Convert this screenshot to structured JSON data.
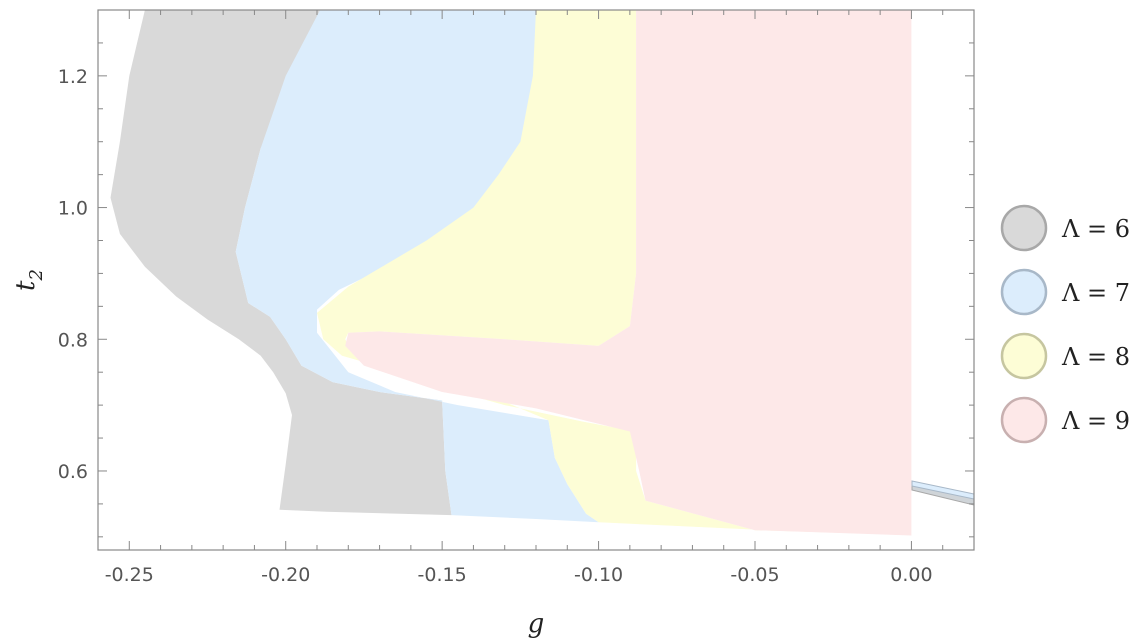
{
  "chart_data": {
    "type": "area",
    "xlabel": "g",
    "ylabel": "t",
    "ylabel_subscript": "2",
    "xlim": [
      -0.26,
      0.02
    ],
    "ylim": [
      0.48,
      1.3
    ],
    "xticks": [
      -0.25,
      -0.2,
      -0.15,
      -0.1,
      -0.05,
      0.0
    ],
    "xtick_labels": [
      "-0.25",
      "-0.20",
      "-0.15",
      "-0.10",
      "-0.05",
      "0.00"
    ],
    "yticks": [
      0.6,
      0.8,
      1.0,
      1.2
    ],
    "ytick_labels": [
      "0.6",
      "0.8",
      "1.0",
      "1.2"
    ],
    "legend_position": "right",
    "series": [
      {
        "name": "Λ = 6",
        "color": "#d9d9d9",
        "stroke": "#a8a8a8",
        "polygon": [
          [
            -0.245,
            1.3
          ],
          [
            -0.25,
            1.2
          ],
          [
            -0.253,
            1.1
          ],
          [
            -0.256,
            1.015
          ],
          [
            -0.253,
            0.96
          ],
          [
            -0.245,
            0.91
          ],
          [
            -0.235,
            0.865
          ],
          [
            -0.225,
            0.83
          ],
          [
            -0.215,
            0.8
          ],
          [
            -0.208,
            0.775
          ],
          [
            -0.204,
            0.75
          ],
          [
            -0.2,
            0.718
          ],
          [
            -0.198,
            0.685
          ],
          [
            -0.2,
            0.61
          ],
          [
            -0.202,
            0.541
          ],
          [
            -0.187,
            0.538
          ],
          [
            -0.147,
            0.533
          ],
          [
            -0.149,
            0.6
          ],
          [
            -0.15,
            0.707
          ],
          [
            -0.17,
            0.72
          ],
          [
            -0.185,
            0.735
          ],
          [
            -0.195,
            0.76
          ],
          [
            -0.2,
            0.8
          ],
          [
            -0.205,
            0.834
          ],
          [
            -0.212,
            0.855
          ],
          [
            -0.216,
            0.933
          ],
          [
            -0.213,
            1.0
          ],
          [
            -0.208,
            1.09
          ],
          [
            -0.198,
            1.17
          ],
          [
            -0.189,
            1.3
          ]
        ]
      },
      {
        "name": "Λ = 7",
        "color": "#dcedfc",
        "stroke": "#a8b8c8",
        "polygon": [
          [
            -0.189,
            1.3
          ],
          [
            -0.2,
            1.2
          ],
          [
            -0.208,
            1.09
          ],
          [
            -0.213,
            1.0
          ],
          [
            -0.216,
            0.933
          ],
          [
            -0.212,
            0.855
          ],
          [
            -0.205,
            0.834
          ],
          [
            -0.2,
            0.8
          ],
          [
            -0.195,
            0.76
          ],
          [
            -0.185,
            0.735
          ],
          [
            -0.17,
            0.72
          ],
          [
            -0.15,
            0.707
          ],
          [
            -0.149,
            0.6
          ],
          [
            -0.147,
            0.533
          ],
          [
            -0.12,
            0.527
          ],
          [
            -0.1,
            0.522
          ],
          [
            -0.104,
            0.535
          ],
          [
            -0.11,
            0.58
          ],
          [
            -0.114,
            0.62
          ],
          [
            -0.116,
            0.677
          ],
          [
            -0.145,
            0.7
          ],
          [
            -0.165,
            0.72
          ],
          [
            -0.18,
            0.75
          ],
          [
            -0.19,
            0.81
          ],
          [
            -0.19,
            0.845
          ],
          [
            -0.183,
            0.875
          ],
          [
            -0.17,
            0.905
          ],
          [
            -0.16,
            0.925
          ],
          [
            -0.143,
            0.975
          ],
          [
            -0.132,
            1.02
          ],
          [
            -0.124,
            1.06
          ],
          [
            -0.118,
            1.1
          ],
          [
            -0.116,
            1.2
          ],
          [
            -0.115,
            1.3
          ]
        ]
      },
      {
        "name": "Λ = 8",
        "color": "#fdfdd6",
        "stroke": "#c6c6a0",
        "polygon": [
          [
            -0.12,
            1.3
          ],
          [
            -0.121,
            1.2
          ],
          [
            -0.125,
            1.1
          ],
          [
            -0.132,
            1.05
          ],
          [
            -0.14,
            1.0
          ],
          [
            -0.155,
            0.95
          ],
          [
            -0.18,
            0.88
          ],
          [
            -0.19,
            0.84
          ],
          [
            -0.188,
            0.8
          ],
          [
            -0.182,
            0.775
          ],
          [
            -0.16,
            0.745
          ],
          [
            -0.13,
            0.705
          ],
          [
            -0.116,
            0.677
          ],
          [
            -0.114,
            0.62
          ],
          [
            -0.11,
            0.58
          ],
          [
            -0.104,
            0.535
          ],
          [
            -0.1,
            0.522
          ],
          [
            -0.05,
            0.511
          ],
          [
            0.0,
            0.503
          ],
          [
            -0.05,
            0.51
          ],
          [
            -0.085,
            0.555
          ],
          [
            -0.088,
            0.6
          ],
          [
            -0.088,
            0.66
          ],
          [
            -0.105,
            0.675
          ],
          [
            -0.13,
            0.7
          ],
          [
            -0.16,
            0.74
          ],
          [
            -0.178,
            0.775
          ],
          [
            -0.181,
            0.8
          ],
          [
            -0.18,
            0.81
          ],
          [
            -0.17,
            0.812
          ],
          [
            -0.13,
            0.8
          ],
          [
            -0.1,
            0.79
          ],
          [
            -0.09,
            0.82
          ],
          [
            -0.088,
            0.9
          ],
          [
            -0.088,
            1.0
          ],
          [
            -0.088,
            1.3
          ]
        ]
      },
      {
        "name": "Λ = 9",
        "color": "#fde8e8",
        "stroke": "#c8b0b0",
        "polygon": [
          [
            -0.088,
            1.3
          ],
          [
            -0.088,
            1.0
          ],
          [
            -0.088,
            0.9
          ],
          [
            -0.09,
            0.82
          ],
          [
            -0.1,
            0.79
          ],
          [
            -0.13,
            0.8
          ],
          [
            -0.17,
            0.812
          ],
          [
            -0.18,
            0.81
          ],
          [
            -0.181,
            0.79
          ],
          [
            -0.175,
            0.76
          ],
          [
            -0.15,
            0.72
          ],
          [
            -0.12,
            0.695
          ],
          [
            -0.09,
            0.66
          ],
          [
            -0.087,
            0.6
          ],
          [
            -0.085,
            0.555
          ],
          [
            -0.05,
            0.51
          ],
          [
            0.0,
            0.502
          ],
          [
            0.0,
            0.6
          ],
          [
            0.0,
            1.0
          ],
          [
            0.0,
            1.3
          ]
        ]
      }
    ]
  }
}
